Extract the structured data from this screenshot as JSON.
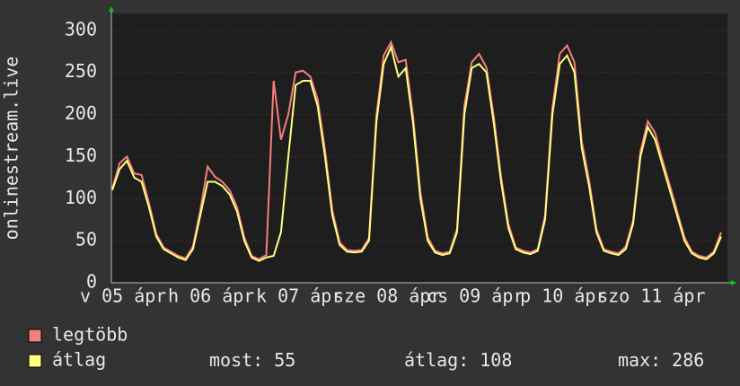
{
  "chart_data": {
    "type": "line",
    "y_label": "onlinestream.live",
    "categories": [
      null,
      "v 05 ápr",
      null,
      null,
      null,
      null,
      null,
      null,
      null,
      null,
      null,
      null,
      null,
      "h 06 ápr",
      null,
      null,
      null,
      null,
      null,
      null,
      null,
      null,
      null,
      null,
      null,
      "k 07 ápr",
      null,
      null,
      null,
      null,
      null,
      null,
      null,
      null,
      null,
      null,
      null,
      "sze 08 ápr",
      null,
      null,
      null,
      null,
      null,
      null,
      null,
      null,
      null,
      null,
      null,
      "cs 09 ápr",
      null,
      null,
      null,
      null,
      null,
      null,
      null,
      null,
      null,
      null,
      null,
      "p 10 ápr",
      null,
      null,
      null,
      null,
      null,
      null,
      null,
      null,
      null,
      null,
      null,
      "szo 11 ápr",
      null,
      null,
      null,
      null,
      null,
      null,
      null,
      null,
      null,
      null
    ],
    "series": [
      {
        "name": "legtöbb",
        "color": "#f47f7f",
        "values": [
          112,
          142,
          150,
          130,
          128,
          95,
          58,
          42,
          37,
          32,
          29,
          43,
          86,
          138,
          126,
          120,
          110,
          90,
          54,
          32,
          28,
          33,
          240,
          170,
          200,
          250,
          252,
          245,
          218,
          158,
          86,
          48,
          39,
          38,
          39,
          53,
          198,
          270,
          286,
          262,
          265,
          198,
          108,
          54,
          38,
          35,
          37,
          64,
          210,
          262,
          272,
          256,
          198,
          126,
          70,
          42,
          38,
          36,
          40,
          80,
          208,
          272,
          282,
          262,
          168,
          122,
          64,
          40,
          37,
          35,
          43,
          74,
          156,
          192,
          178,
          146,
          116,
          85,
          54,
          37,
          32,
          30,
          37,
          60
        ]
      },
      {
        "name": "átlag",
        "color": "#ffff7f",
        "values": [
          110,
          135,
          145,
          125,
          120,
          90,
          55,
          40,
          35,
          30,
          27,
          40,
          80,
          120,
          120,
          115,
          105,
          85,
          50,
          30,
          26,
          30,
          32,
          60,
          150,
          235,
          240,
          240,
          210,
          150,
          80,
          45,
          37,
          36,
          37,
          50,
          190,
          260,
          280,
          245,
          255,
          190,
          100,
          50,
          36,
          33,
          35,
          60,
          200,
          255,
          260,
          250,
          190,
          120,
          65,
          40,
          36,
          34,
          38,
          75,
          200,
          260,
          270,
          250,
          160,
          115,
          60,
          38,
          35,
          33,
          40,
          70,
          150,
          185,
          170,
          140,
          110,
          80,
          50,
          35,
          30,
          28,
          35,
          55
        ]
      }
    ],
    "stats": [
      {
        "label": "most:",
        "value": 55
      },
      {
        "label": "átlag:",
        "value": 108
      },
      {
        "label": "max:",
        "value": 286
      }
    ],
    "ylim": [
      0,
      320
    ],
    "yticks": [
      0,
      50,
      100,
      150,
      200,
      250,
      300
    ],
    "grid": true
  }
}
